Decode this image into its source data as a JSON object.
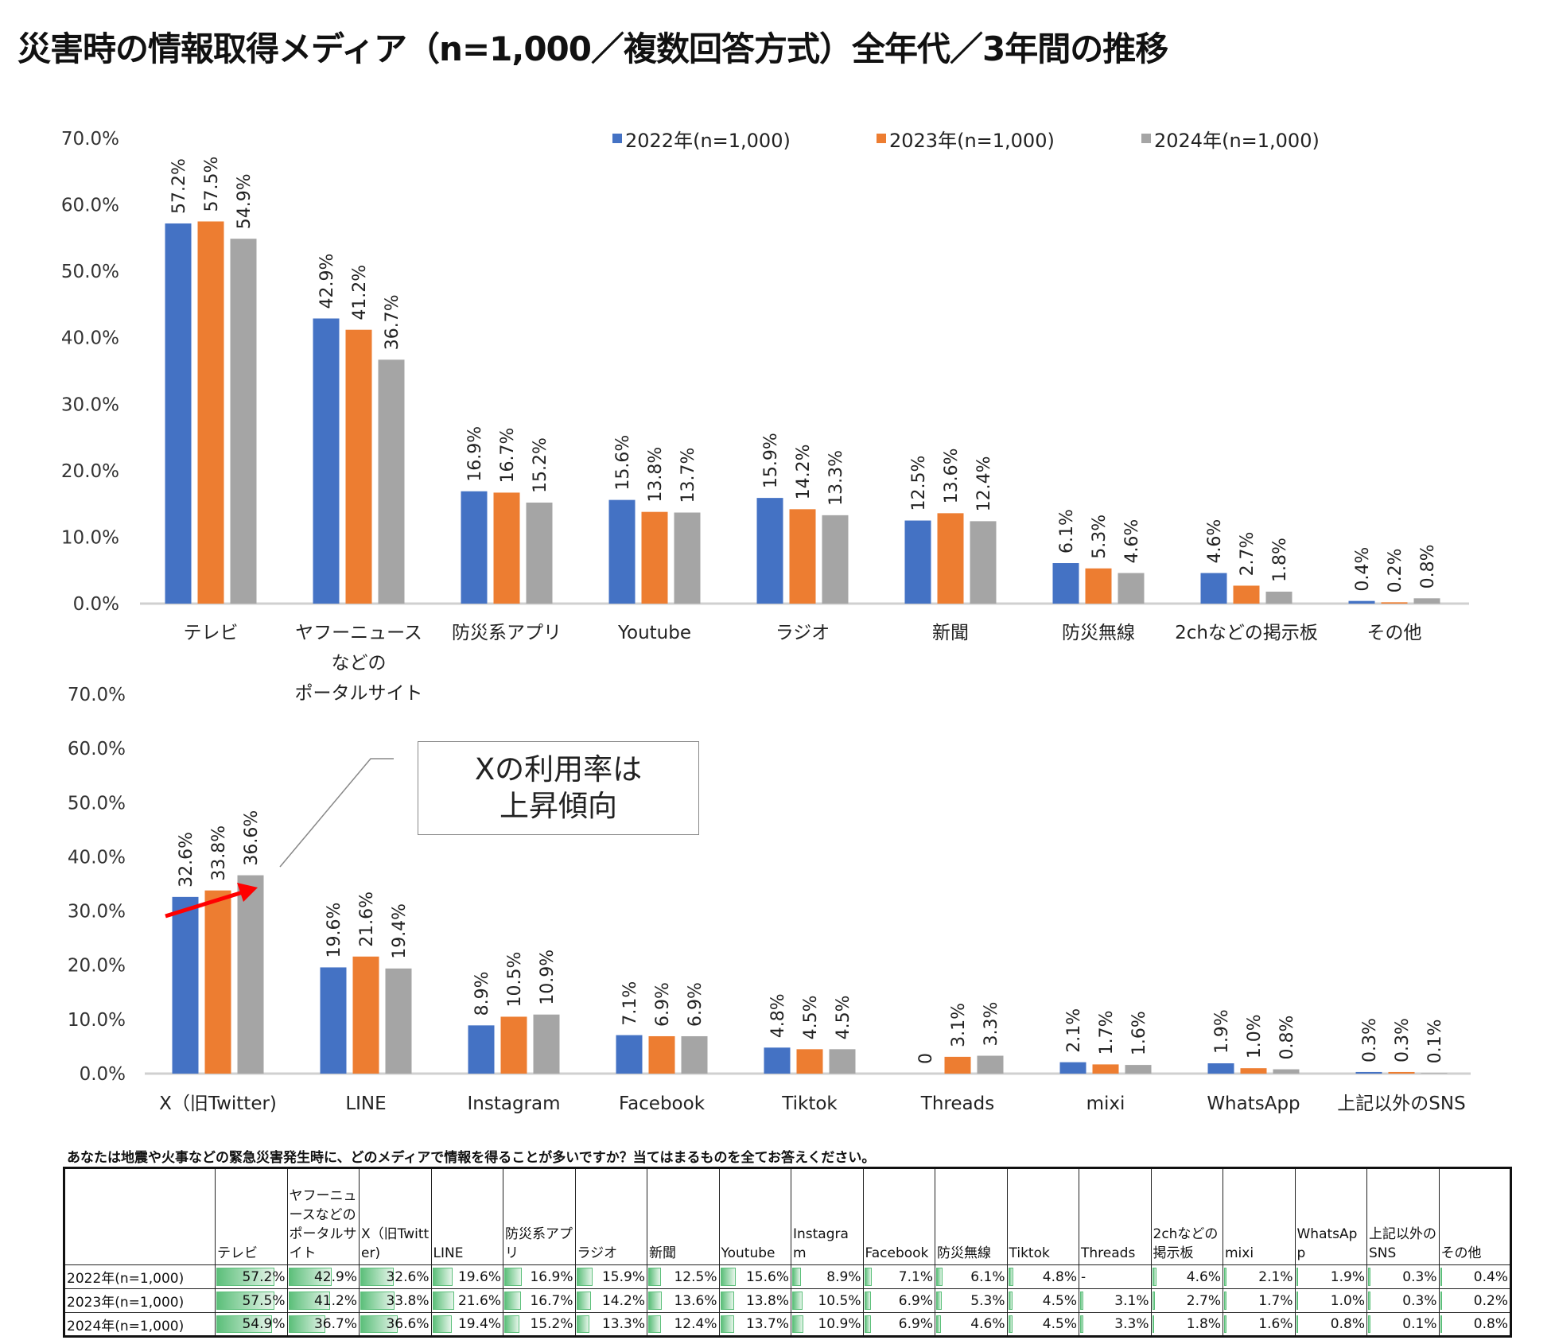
{
  "title": "災害時の情報取得メディア（n=1,000／複数回答方式）全年代／3年間の推移",
  "colors": {
    "2022": "#4472C4",
    "2023": "#ED7D31",
    "2024": "#A5A5A5",
    "arrow": "#FF0000",
    "table_bar": "#5CBF7A"
  },
  "callout": {
    "line1": "Xの利用率は",
    "line2": "上昇傾向"
  },
  "chart_data": [
    {
      "type": "bar",
      "legend_position": "top-right",
      "ylim": [
        0,
        70
      ],
      "yticks": [
        "0.0%",
        "10.0%",
        "20.0%",
        "30.0%",
        "40.0%",
        "50.0%",
        "60.0%",
        "70.0%"
      ],
      "categories": [
        [
          "テレビ"
        ],
        [
          "ヤフーニュース",
          "などの",
          "ポータルサイト"
        ],
        [
          "防災系アプリ"
        ],
        [
          "Youtube"
        ],
        [
          "ラジオ"
        ],
        [
          "新聞"
        ],
        [
          "防災無線"
        ],
        [
          "2chなどの掲示板"
        ],
        [
          "その他"
        ]
      ],
      "series": [
        {
          "name": "2022年(n=1,000)",
          "values": [
            57.2,
            42.9,
            16.9,
            15.6,
            15.9,
            12.5,
            6.1,
            4.6,
            0.4
          ]
        },
        {
          "name": "2023年(n=1,000)",
          "values": [
            57.5,
            41.2,
            16.7,
            13.8,
            14.2,
            13.6,
            5.3,
            2.7,
            0.2
          ]
        },
        {
          "name": "2024年(n=1,000)",
          "values": [
            54.9,
            36.7,
            15.2,
            13.7,
            13.3,
            12.4,
            4.6,
            1.8,
            0.8
          ]
        }
      ]
    },
    {
      "type": "bar",
      "ylim": [
        0,
        70
      ],
      "yticks": [
        "0.0%",
        "10.0%",
        "20.0%",
        "30.0%",
        "40.0%",
        "50.0%",
        "60.0%",
        "70.0%"
      ],
      "categories": [
        [
          "X（旧Twitter)"
        ],
        [
          "LINE"
        ],
        [
          "Instagram"
        ],
        [
          "Facebook"
        ],
        [
          "Tiktok"
        ],
        [
          "Threads"
        ],
        [
          "mixi"
        ],
        [
          "WhatsApp"
        ],
        [
          "上記以外のSNS"
        ]
      ],
      "series": [
        {
          "name": "2022年(n=1,000)",
          "values": [
            32.6,
            19.6,
            8.9,
            7.1,
            4.8,
            0,
            2.1,
            1.9,
            0.3
          ],
          "labels": [
            "32.6%",
            "19.6%",
            "8.9%",
            "7.1%",
            "4.8%",
            "0",
            "2.1%",
            "1.9%",
            "0.3%"
          ]
        },
        {
          "name": "2023年(n=1,000)",
          "values": [
            33.8,
            21.6,
            10.5,
            6.9,
            4.5,
            3.1,
            1.7,
            1.0,
            0.3
          ]
        },
        {
          "name": "2024年(n=1,000)",
          "values": [
            36.6,
            19.4,
            10.9,
            6.9,
            4.5,
            3.3,
            1.6,
            0.8,
            0.1
          ]
        }
      ]
    }
  ],
  "table": {
    "question": "あなたは地震や火事などの緊急災害発生時に、どのメディアで情報を得ることが多いですか？当てはまるものを全てお答えください。",
    "headers": [
      "",
      "テレビ",
      "ヤフーニュースなどのポータルサイト",
      "X（旧Twitter)",
      "LINE",
      "防災系アプリ",
      "ラジオ",
      "新聞",
      "Youtube",
      "Instagram",
      "Facebook",
      "防災無線",
      "Tiktok",
      "Threads",
      "2chなどの掲示板",
      "mixi",
      "WhatsApp",
      "上記以外のSNS",
      "その他"
    ],
    "rows": [
      {
        "label": "2022年(n=1,000)",
        "values": [
          "57.2%",
          "42.9%",
          "32.6%",
          "19.6%",
          "16.9%",
          "15.9%",
          "12.5%",
          "15.6%",
          "8.9%",
          "7.1%",
          "6.1%",
          "4.8%",
          "-",
          "4.6%",
          "2.1%",
          "1.9%",
          "0.3%",
          "0.4%"
        ]
      },
      {
        "label": "2023年(n=1,000)",
        "values": [
          "57.5%",
          "41.2%",
          "33.8%",
          "21.6%",
          "16.7%",
          "14.2%",
          "13.6%",
          "13.8%",
          "10.5%",
          "6.9%",
          "5.3%",
          "4.5%",
          "3.1%",
          "2.7%",
          "1.7%",
          "1.0%",
          "0.3%",
          "0.2%"
        ]
      },
      {
        "label": "2024年(n=1,000)",
        "values": [
          "54.9%",
          "36.7%",
          "36.6%",
          "19.4%",
          "15.2%",
          "13.3%",
          "12.4%",
          "13.7%",
          "10.9%",
          "6.9%",
          "4.6%",
          "4.5%",
          "3.3%",
          "1.8%",
          "1.6%",
          "0.8%",
          "0.1%",
          "0.8%"
        ]
      }
    ]
  }
}
